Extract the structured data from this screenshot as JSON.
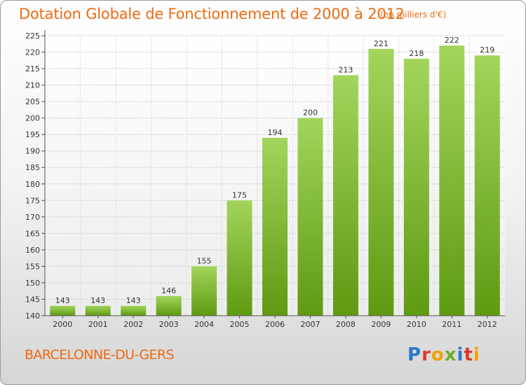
{
  "header": {
    "title": "Dotation Globale de Fonctionnement de 2000 à 2012",
    "unit": "(en milliers d'€)"
  },
  "footer": {
    "commune": "BARCELONNE-DU-GERS",
    "logo": "Proxiti"
  },
  "colors": {
    "title": "#ee6a10",
    "bar_light": "#a3d55c",
    "bar_dark": "#5e9a12",
    "logo_letters": [
      "#2a78c8",
      "#e0372a",
      "#f2a100",
      "#6cae2a",
      "#2a78c8",
      "#e0372a",
      "#f2a100"
    ]
  },
  "chart_data": {
    "type": "bar",
    "categories": [
      "2000",
      "2001",
      "2002",
      "2003",
      "2004",
      "2005",
      "2006",
      "2007",
      "2008",
      "2009",
      "2010",
      "2011",
      "2012"
    ],
    "values": [
      143,
      143,
      143,
      146,
      155,
      175,
      194,
      200,
      213,
      221,
      218,
      222,
      219
    ],
    "yticks": [
      "140",
      "145",
      "150",
      "155",
      "160",
      "165",
      "170",
      "175",
      "180",
      "185",
      "190",
      "195",
      "200",
      "205",
      "210",
      "215",
      "220",
      "225"
    ],
    "ylim": [
      140,
      225
    ],
    "grid": true
  }
}
